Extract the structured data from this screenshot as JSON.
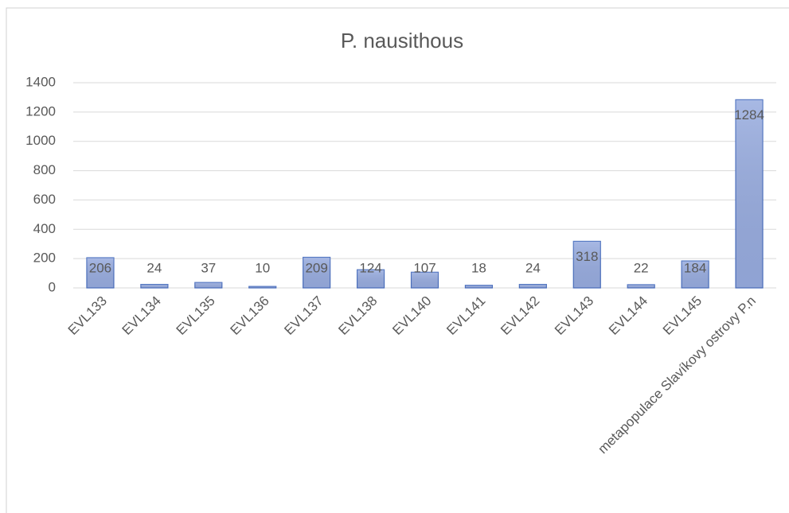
{
  "chart_data": {
    "type": "bar",
    "title": "P. nausithous",
    "categories": [
      "EVL133",
      "EVL134",
      "EVL135",
      "EVL136",
      "EVL137",
      "EVL138",
      "EVL140",
      "EVL141",
      "EVL142",
      "EVL143",
      "EVL144",
      "EVL145",
      "metapopulace Slavíkovy ostrovy P.n"
    ],
    "values": [
      206,
      24,
      37,
      10,
      209,
      124,
      107,
      18,
      24,
      318,
      22,
      184,
      1284
    ],
    "color": "#98acdf",
    "ylim": [
      0,
      1400
    ],
    "yticks": [
      0,
      200,
      400,
      600,
      800,
      1000,
      1200,
      1400
    ],
    "grid": true
  }
}
